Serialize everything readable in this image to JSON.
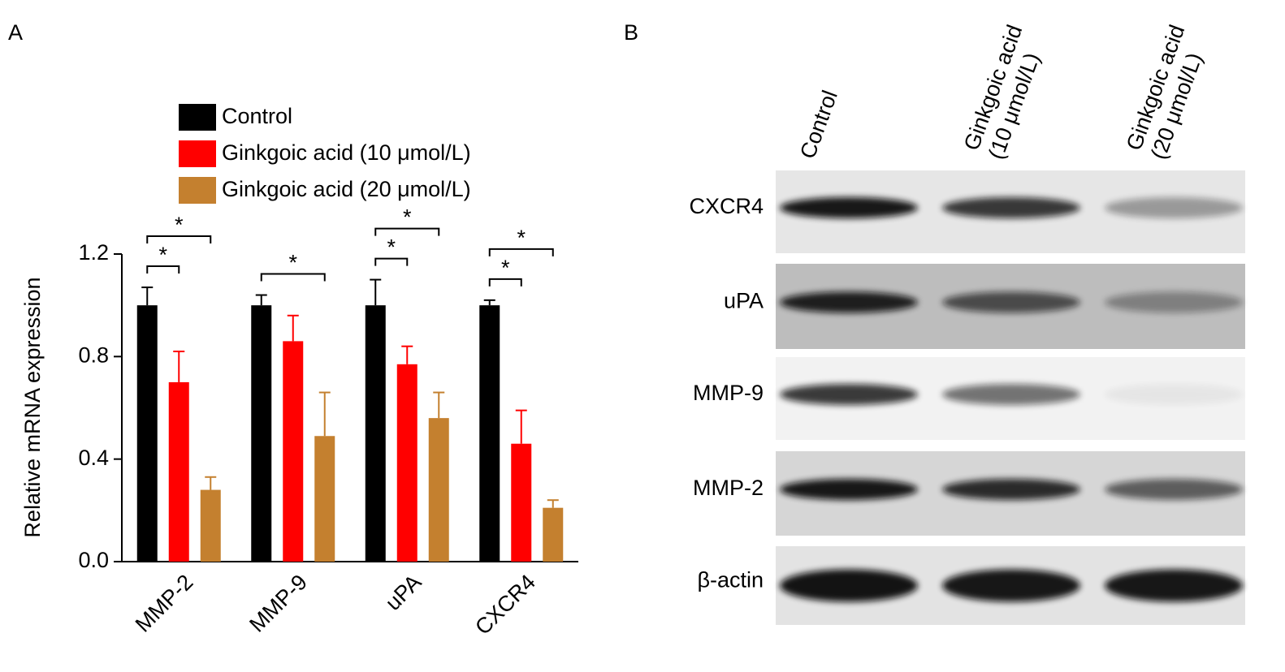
{
  "chart_data": {
    "type": "bar",
    "panel_label": "A",
    "ylabel": "Relative mRNA expression",
    "categories": [
      "MMP-2",
      "MMP-9",
      "uPA",
      "CXCR4"
    ],
    "series": [
      {
        "name": "Control",
        "color": "#000000",
        "values": [
          1.0,
          1.0,
          1.0,
          1.0
        ],
        "errors": [
          0.07,
          0.04,
          0.1,
          0.02
        ]
      },
      {
        "name": "Ginkgoic acid (10 μmol/L)",
        "color": "#ff0000",
        "values": [
          0.7,
          0.86,
          0.77,
          0.46
        ],
        "errors": [
          0.12,
          0.1,
          0.07,
          0.13
        ]
      },
      {
        "name": "Ginkgoic acid (20 μmol/L)",
        "color": "#c4802f",
        "values": [
          0.28,
          0.49,
          0.56,
          0.21
        ],
        "errors": [
          0.05,
          0.17,
          0.1,
          0.03
        ]
      }
    ],
    "ylim": [
      0,
      1.2
    ],
    "yticks": [
      {
        "value": 0,
        "label": "0.0"
      },
      0.4,
      0.8,
      1.2
    ],
    "significance": [
      {
        "category": 0,
        "from": 0,
        "to": 1,
        "label": "*"
      },
      {
        "category": 0,
        "from": 0,
        "to": 2,
        "label": "*"
      },
      {
        "category": 1,
        "from": 0,
        "to": 2,
        "label": "*"
      },
      {
        "category": 2,
        "from": 0,
        "to": 1,
        "label": "*"
      },
      {
        "category": 2,
        "from": 0,
        "to": 2,
        "label": "*"
      },
      {
        "category": 3,
        "from": 0,
        "to": 1,
        "label": "*"
      },
      {
        "category": 3,
        "from": 0,
        "to": 2,
        "label": "*"
      }
    ]
  },
  "blot": {
    "panel_label": "B",
    "lanes": [
      [
        "Control"
      ],
      [
        "Ginkgoic acid",
        "(10 μmol/L)"
      ],
      [
        "Ginkgoic acid",
        "(20 μmol/L)"
      ]
    ],
    "proteins": [
      "CXCR4",
      "uPA",
      "MMP-9",
      "MMP-2",
      "β-actin"
    ]
  }
}
